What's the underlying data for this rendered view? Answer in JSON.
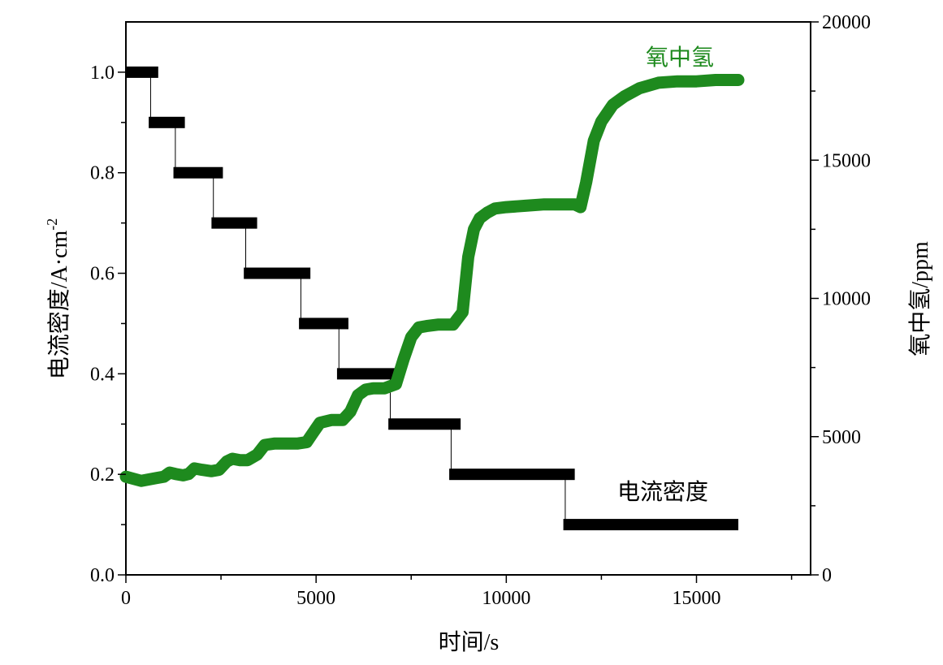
{
  "chart_data": {
    "type": "line",
    "xlabel": "时间/s",
    "ylabel_left": "电流密度/A·cm",
    "ylabel_left_superscript": "-2",
    "ylabel_right": "氧中氢/ppm",
    "xlim": [
      0,
      18000
    ],
    "ylim_left": [
      0,
      1.1
    ],
    "ylim_right": [
      0,
      20000
    ],
    "x_ticks": [
      0,
      5000,
      10000,
      15000
    ],
    "y_left_ticks": [
      0.0,
      0.2,
      0.4,
      0.6,
      0.8,
      1.0
    ],
    "y_left_tick_labels": [
      "0.0",
      "0.2",
      "0.4",
      "0.6",
      "0.8",
      "1.0"
    ],
    "y_right_ticks": [
      0,
      5000,
      10000,
      15000,
      20000
    ],
    "grid": false,
    "series": [
      {
        "name": "电流密度",
        "axis": "left",
        "color": "#000000",
        "style": "step",
        "segments": [
          {
            "x_start": 0,
            "x_end": 850,
            "y": 1.0
          },
          {
            "x_start": 600,
            "x_end": 1550,
            "y": 0.9
          },
          {
            "x_start": 1250,
            "x_end": 2550,
            "y": 0.8
          },
          {
            "x_start": 2250,
            "x_end": 3450,
            "y": 0.7
          },
          {
            "x_start": 3100,
            "x_end": 4850,
            "y": 0.6
          },
          {
            "x_start": 4550,
            "x_end": 5850,
            "y": 0.5
          },
          {
            "x_start": 5550,
            "x_end": 7150,
            "y": 0.4
          },
          {
            "x_start": 6900,
            "x_end": 8800,
            "y": 0.3
          },
          {
            "x_start": 8500,
            "x_end": 11800,
            "y": 0.2
          },
          {
            "x_start": 11500,
            "x_end": 16100,
            "y": 0.1
          }
        ]
      },
      {
        "name": "氧中氢",
        "axis": "right",
        "color": "#1e8a1e",
        "style": "thick-line",
        "x": [
          0,
          400,
          800,
          1000,
          1150,
          1300,
          1500,
          1650,
          1800,
          2000,
          2250,
          2450,
          2650,
          2800,
          3000,
          3200,
          3450,
          3650,
          3900,
          4200,
          4500,
          4750,
          4900,
          5100,
          5400,
          5700,
          5900,
          6100,
          6300,
          6500,
          6800,
          7100,
          7300,
          7500,
          7700,
          7900,
          8200,
          8600,
          8850,
          9000,
          9150,
          9300,
          9500,
          9700,
          10000,
          10500,
          11000,
          11500,
          11800,
          11950,
          12100,
          12300,
          12500,
          12800,
          13100,
          13500,
          14000,
          14500,
          15000,
          15500,
          16100
        ],
        "y": [
          3550,
          3400,
          3500,
          3550,
          3700,
          3650,
          3600,
          3650,
          3850,
          3800,
          3750,
          3800,
          4100,
          4200,
          4150,
          4150,
          4350,
          4700,
          4750,
          4750,
          4750,
          4800,
          5100,
          5500,
          5600,
          5600,
          5900,
          6500,
          6700,
          6750,
          6750,
          6900,
          7800,
          8600,
          8950,
          9000,
          9050,
          9050,
          9500,
          11500,
          12500,
          12900,
          13100,
          13250,
          13300,
          13350,
          13400,
          13400,
          13400,
          13300,
          14200,
          15700,
          16400,
          17000,
          17300,
          17600,
          17800,
          17850,
          17850,
          17900,
          17900
        ]
      }
    ]
  }
}
